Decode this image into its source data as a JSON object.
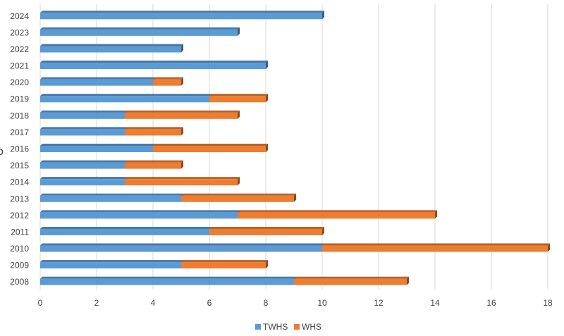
{
  "chart_data": {
    "type": "bar",
    "orientation": "horizontal",
    "stacked": true,
    "categories": [
      "2008",
      "2009",
      "2010",
      "2011",
      "2012",
      "2013",
      "2014",
      "2015",
      "2016",
      "2017",
      "2018",
      "2019",
      "2020",
      "2021",
      "2022",
      "2023",
      "2024"
    ],
    "series": [
      {
        "name": "TWHS",
        "color": "#5b9bd5",
        "values": [
          9,
          5,
          10,
          6,
          7,
          5,
          3,
          3,
          4,
          3,
          3,
          6,
          4,
          8,
          5,
          7,
          10
        ]
      },
      {
        "name": "WHS",
        "color": "#ed7d31",
        "values": [
          4,
          3,
          8,
          4,
          7,
          4,
          4,
          2,
          4,
          2,
          4,
          2,
          1,
          0,
          0,
          0,
          0
        ]
      }
    ],
    "xlim": [
      0,
      18
    ],
    "xticks": [
      "0",
      "2",
      "4",
      "6",
      "8",
      "10",
      "12",
      "14",
      "16",
      "18"
    ],
    "grid": true,
    "legend": "bottom-center",
    "left_edge_glyph": "o"
  }
}
